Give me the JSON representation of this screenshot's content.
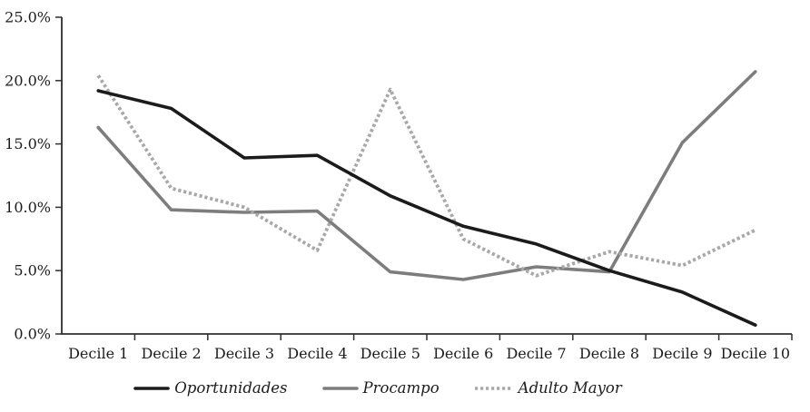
{
  "chart_data": {
    "type": "line",
    "title": "",
    "xlabel": "",
    "ylabel": "",
    "categories": [
      "Decile 1",
      "Decile 2",
      "Decile 3",
      "Decile 4",
      "Decile 5",
      "Decile 6",
      "Decile 7",
      "Decile 8",
      "Decile 9",
      "Decile 10"
    ],
    "series": [
      {
        "name": "Oportunidades",
        "style": "solid",
        "color": "#1b1b1b",
        "values": [
          19.2,
          17.8,
          13.9,
          14.1,
          10.9,
          8.5,
          7.1,
          5.0,
          3.3,
          0.7
        ]
      },
      {
        "name": "Procampo",
        "style": "solid",
        "color": "#7d7d7d",
        "values": [
          16.3,
          9.8,
          9.6,
          9.7,
          4.9,
          4.3,
          5.3,
          4.9,
          15.1,
          20.7
        ]
      },
      {
        "name": "Adulto Mayor",
        "style": "dotted",
        "color": "#a8a8a8",
        "values": [
          20.4,
          11.5,
          10.0,
          6.6,
          19.3,
          7.5,
          4.6,
          6.5,
          5.4,
          8.2
        ]
      }
    ],
    "draw_order": [
      1,
      2,
      0
    ],
    "ylim": [
      0,
      25
    ],
    "y_tick_values": [
      0,
      5,
      10,
      15,
      20,
      25
    ],
    "y_ticks": [
      "0.0%",
      "5.0%",
      "10.0%",
      "15.0%",
      "20.0%",
      "25.0%"
    ],
    "grid": false,
    "legend_position": "bottom",
    "axis_color": "#2e2e2e"
  }
}
